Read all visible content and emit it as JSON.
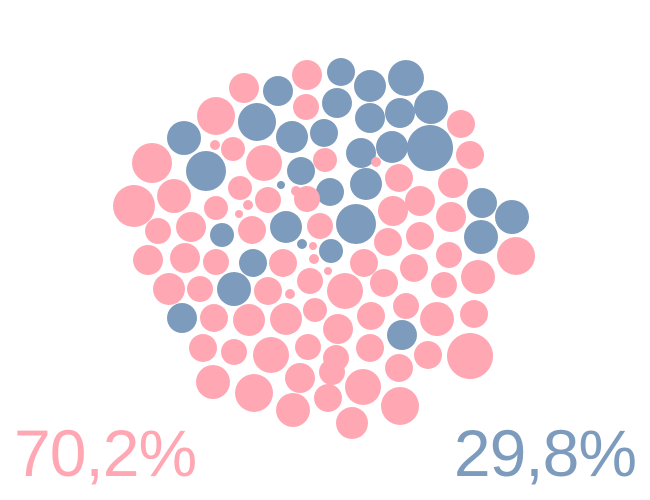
{
  "colors": {
    "pink": "#FFA8B4",
    "blue": "#7D9BBC",
    "background": "#FFFFFF"
  },
  "chart_data": {
    "type": "packed-bubble",
    "series": [
      {
        "key": "pink",
        "label": "70,2%",
        "value": 70.2,
        "color": "#FFA8B4"
      },
      {
        "key": "blue",
        "label": "29,8%",
        "value": 29.8,
        "color": "#7D9BBC"
      }
    ],
    "legend": "bottom"
  }
}
